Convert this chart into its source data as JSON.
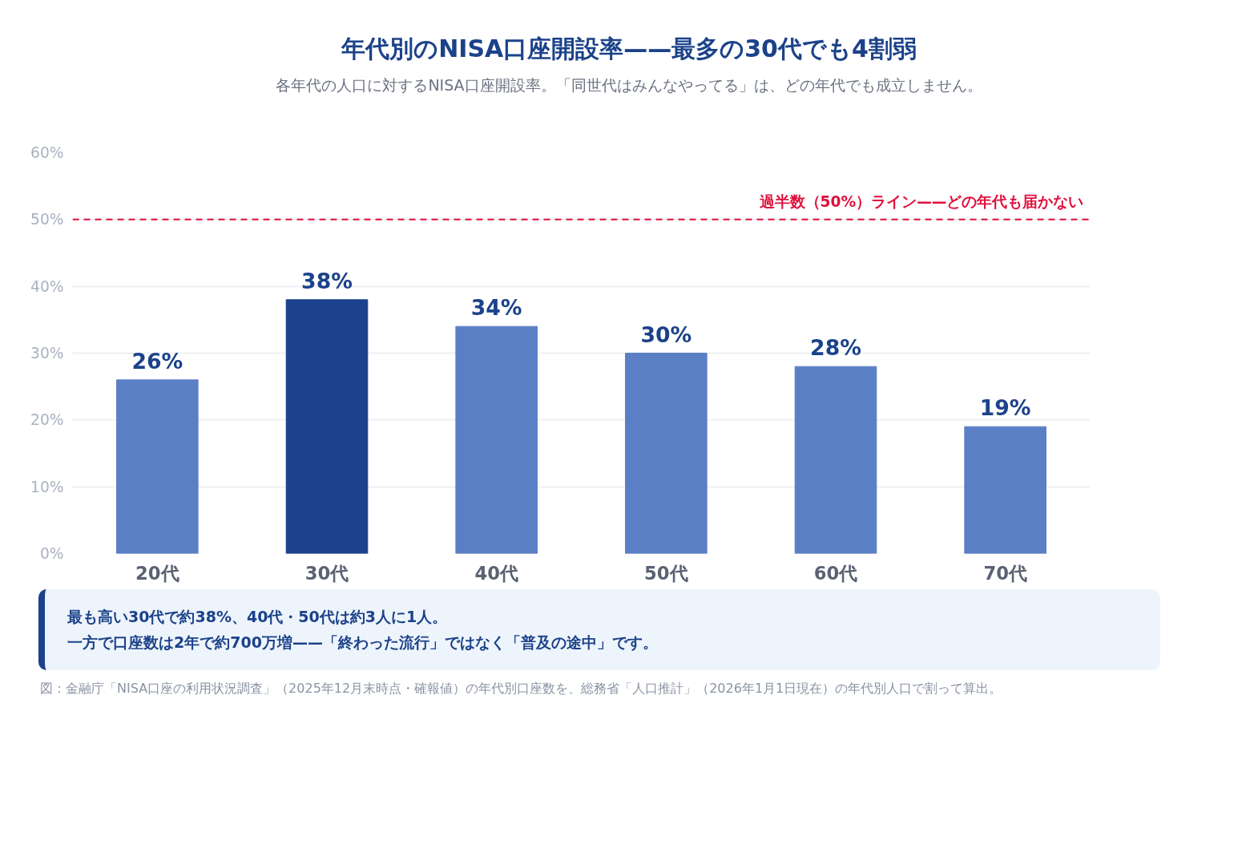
{
  "chart_data": {
    "type": "bar",
    "title": "年代別のNISA口座開設率——最多の30代でも4割弱",
    "subtitle": "各年代の人口に対するNISA口座開設率。「同世代はみんなやってる」は、どの年代でも成立しません。",
    "categories": [
      "20代",
      "30代",
      "40代",
      "50代",
      "60代",
      "70代"
    ],
    "values": [
      26,
      38,
      34,
      30,
      28,
      19
    ],
    "colors": [
      "#5b7fc4",
      "#1b428a",
      "#5b7fc4",
      "#5b7fc4",
      "#5b7fc4",
      "#5b7fc4"
    ],
    "value_labels": [
      "26%",
      "38%",
      "34%",
      "30%",
      "28%",
      "19%"
    ],
    "ylim": [
      0,
      60
    ],
    "yticks": [
      {
        "value": 0,
        "label": "0%"
      },
      {
        "value": 10,
        "label": "10%"
      },
      {
        "value": 20,
        "label": "20%"
      },
      {
        "value": 30,
        "label": "30%"
      },
      {
        "value": 40,
        "label": "40%"
      },
      {
        "value": 50,
        "label": "50%"
      },
      {
        "value": 60,
        "label": "60%"
      }
    ],
    "grid": "y",
    "ref_lines": [
      {
        "axis": "y",
        "value": 50,
        "label": "過半数（50%）ライン——どの年代も届かない",
        "color": "#e0103c",
        "line_style": "dashed"
      }
    ],
    "annotations": [
      "最も高い30代で約38%、40代・50代は約3人に1人。",
      "一方で口座数は2年で約700万増——「終わった流行」ではなく「普及の途中」です。",
      "図：金融庁「NISA口座の利用状況調査」（2025年12月末時点・確報値）の年代別口座数を、総務省「人口推計」（2026年1月1日現在）の年代別人口で割って算出。"
    ]
  }
}
